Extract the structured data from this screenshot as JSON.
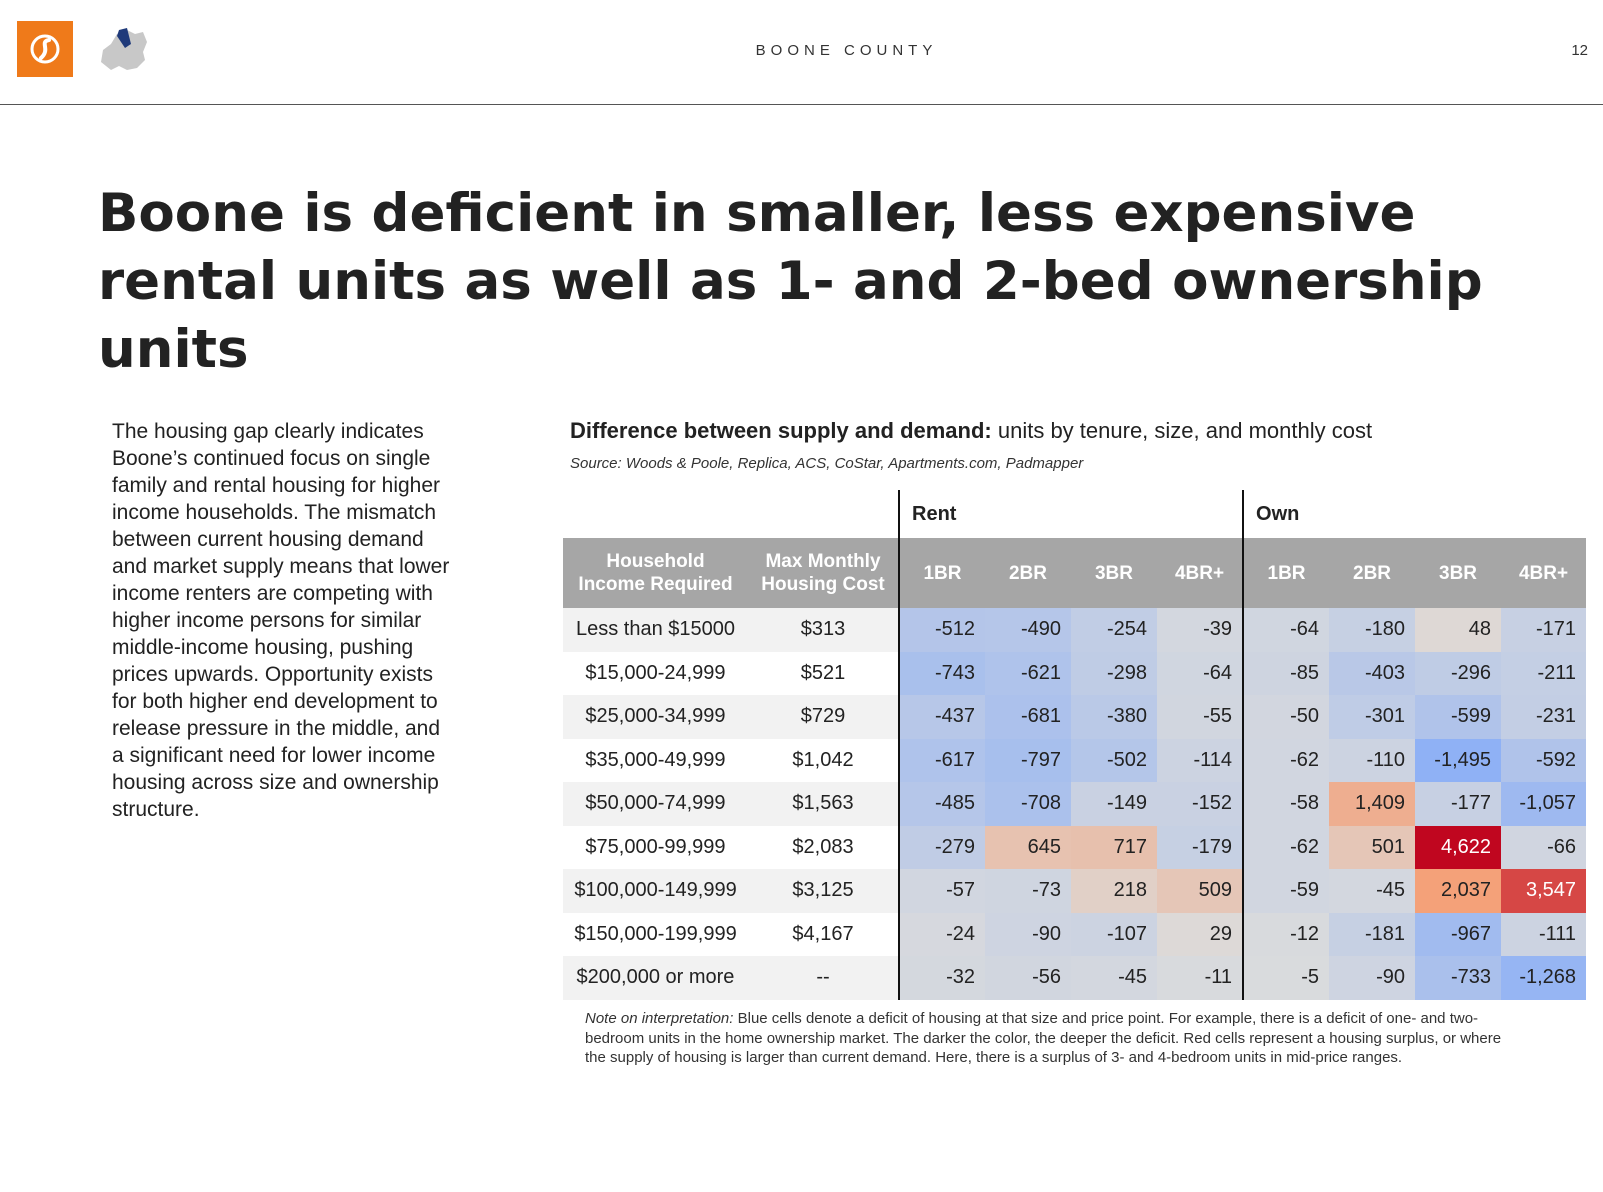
{
  "header": {
    "section_title": "BOONE COUNTY",
    "page_number": "12",
    "logo_icon": "swirl-logo-icon",
    "map_icon": "county-map-icon"
  },
  "headline": "Boone is deficient in smaller, less expensive rental units as well as 1- and 2-bed ownership units",
  "body_text": "The housing gap clearly indicates Boone’s continued focus on single family and rental housing for higher income households. The mismatch between current housing demand and market supply means that lower income renters are competing with higher income persons for similar middle-income housing, pushing prices upwards. Opportunity exists for both higher end development to release pressure in the middle, and a significant need for lower income housing across size and ownership structure.",
  "chart": {
    "title_bold": "Difference between supply and demand:",
    "title_rest": " units by tenure, size, and monthly cost",
    "source": "Source: Woods & Poole, Replica, ACS, CoStar, Apartments.com, Padmapper",
    "groups": [
      "Rent",
      "Own"
    ],
    "col_income_line1": "Household",
    "col_income_line2": "Income Required",
    "col_cost_line1": "Max Monthly",
    "col_cost_line2": "Housing Cost",
    "sizes": [
      "1BR",
      "2BR",
      "3BR",
      "4BR+",
      "1BR",
      "2BR",
      "3BR",
      "4BR+"
    ],
    "rows": [
      {
        "income": "Less than $15000",
        "cost": "$313",
        "cells": [
          "-512",
          "-490",
          "-254",
          "-39",
          "-64",
          "-180",
          "48",
          "-171"
        ]
      },
      {
        "income": "$15,000-24,999",
        "cost": "$521",
        "cells": [
          "-743",
          "-621",
          "-298",
          "-64",
          "-85",
          "-403",
          "-296",
          "-211"
        ]
      },
      {
        "income": "$25,000-34,999",
        "cost": "$729",
        "cells": [
          "-437",
          "-681",
          "-380",
          "-55",
          "-50",
          "-301",
          "-599",
          "-231"
        ]
      },
      {
        "income": "$35,000-49,999",
        "cost": "$1,042",
        "cells": [
          "-617",
          "-797",
          "-502",
          "-114",
          "-62",
          "-110",
          "-1,495",
          "-592"
        ]
      },
      {
        "income": "$50,000-74,999",
        "cost": "$1,563",
        "cells": [
          "-485",
          "-708",
          "-149",
          "-152",
          "-58",
          "1,409",
          "-177",
          "-1,057"
        ]
      },
      {
        "income": "$75,000-99,999",
        "cost": "$2,083",
        "cells": [
          "-279",
          "645",
          "717",
          "-179",
          "-62",
          "501",
          "4,622",
          "-66"
        ]
      },
      {
        "income": "$100,000-149,999",
        "cost": "$3,125",
        "cells": [
          "-57",
          "-73",
          "218",
          "509",
          "-59",
          "-45",
          "2,037",
          "3,547"
        ]
      },
      {
        "income": "$150,000-199,999",
        "cost": "$4,167",
        "cells": [
          "-24",
          "-90",
          "-107",
          "29",
          "-12",
          "-181",
          "-967",
          "-111"
        ]
      },
      {
        "income": "$200,000 or more",
        "cost": "--",
        "cells": [
          "-32",
          "-56",
          "-45",
          "-11",
          "-5",
          "-90",
          "-733",
          "-1,268"
        ]
      }
    ],
    "note_label": "Note on interpretation:",
    "note_text": " Blue cells denote a deficit of housing at that size and price point. For example, there is a deficit of one- and two-bedroom units in the home ownership market. The darker the color, the deeper the deficit. Red cells represent a housing surplus, or where the supply of housing is larger than current demand. Here, there is a surplus of 3- and 4-bedroom units in mid-price ranges.",
    "colors": {
      "header_bg": "#a6a6a6",
      "neutral": "#dcdcdc",
      "deficit_dark": "#8fb1f5",
      "surplus_dark": "#c0061f"
    }
  }
}
